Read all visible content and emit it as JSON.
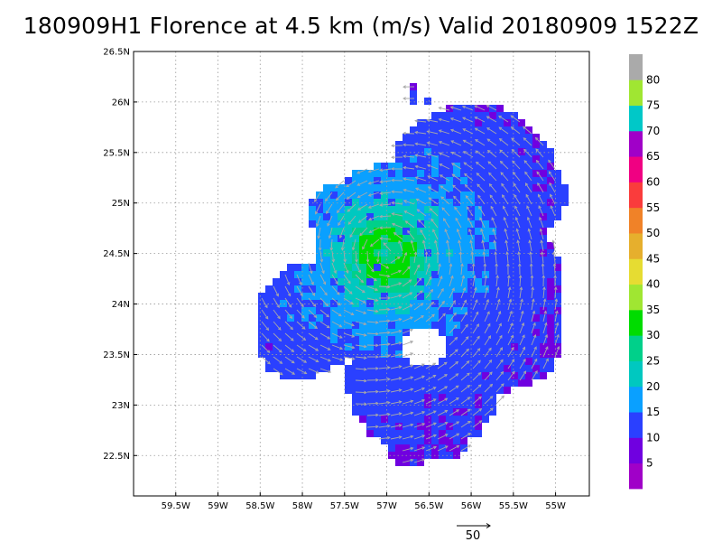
{
  "title": "180909H1 Florence at 4.5 km (m/s) Valid 20180909  1522Z",
  "chart_data": {
    "type": "heatmap",
    "title": "180909H1 Florence at 4.5 km (m/s) Valid 20180909  1522Z",
    "variable": "wind speed (m/s)",
    "xlim": [
      -60.0,
      -54.6
    ],
    "ylim": [
      22.1,
      26.5
    ],
    "xticks": [
      -59.5,
      -59.0,
      -58.5,
      -58.0,
      -57.5,
      -57.0,
      -56.5,
      -56.0,
      -55.5,
      -55.0
    ],
    "xtick_labels": [
      "59.5W",
      "59W",
      "58.5W",
      "58W",
      "57.5W",
      "57W",
      "56.5W",
      "56W",
      "55.5W",
      "55W"
    ],
    "yticks": [
      22.5,
      23.0,
      23.5,
      24.0,
      24.5,
      25.0,
      25.5,
      26.0,
      26.5
    ],
    "ytick_labels": [
      "22.5N",
      "23N",
      "23.5N",
      "24N",
      "24.5N",
      "25N",
      "25.5N",
      "26N",
      "26.5N"
    ],
    "grid": true,
    "colorbar": {
      "labels": [
        "5",
        "10",
        "15",
        "20",
        "25",
        "30",
        "35",
        "40",
        "45",
        "50",
        "55",
        "60",
        "65",
        "70",
        "75",
        "80"
      ],
      "colors": [
        "#a000c8",
        "#7000e0",
        "#2a40ff",
        "#0aa0ff",
        "#00c8c0",
        "#00d08a",
        "#00dc00",
        "#a0e632",
        "#e6dc32",
        "#e6af2d",
        "#f08228",
        "#fa3c3c",
        "#f00082",
        "#a000c8",
        "#00c8c8",
        "#a0e632",
        "#aaaaaa"
      ]
    },
    "storm_center": [
      -57.0,
      24.5
    ],
    "radius_of_max_wind_deg": 0.25,
    "max_wind_ms": 33,
    "reference_vector": {
      "label": "50",
      "speed_ms": 50
    }
  }
}
